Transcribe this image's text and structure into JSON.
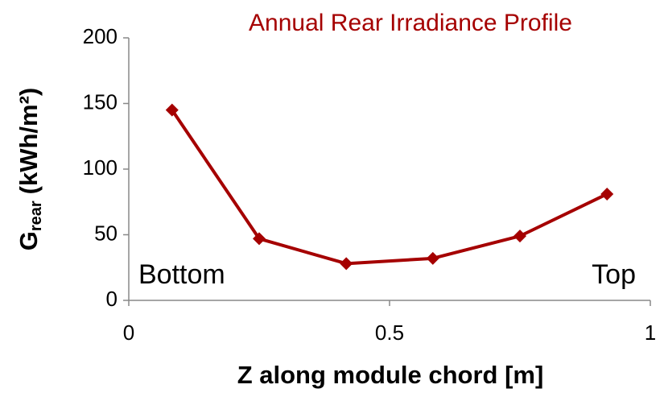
{
  "chart_data": {
    "type": "line",
    "title": "Annual Rear Irradiance Profile",
    "xlabel": "Z  along module chord [m]",
    "ylabel": {
      "symbol": "G",
      "subscript": "rear",
      "unit": "(kWh/m²)"
    },
    "annotations": [
      "Bottom",
      "Top"
    ],
    "x": [
      0.083,
      0.25,
      0.417,
      0.583,
      0.75,
      0.917
    ],
    "series": [
      {
        "name": "Grear",
        "color": "#a50000",
        "values": [
          145,
          47,
          28,
          32,
          49,
          81
        ]
      }
    ],
    "xlim": [
      0,
      1
    ],
    "xticks": [
      0,
      0.5,
      1
    ],
    "ylim": [
      0,
      200
    ],
    "yticks": [
      0,
      50,
      100,
      150,
      200
    ],
    "grid": false
  }
}
